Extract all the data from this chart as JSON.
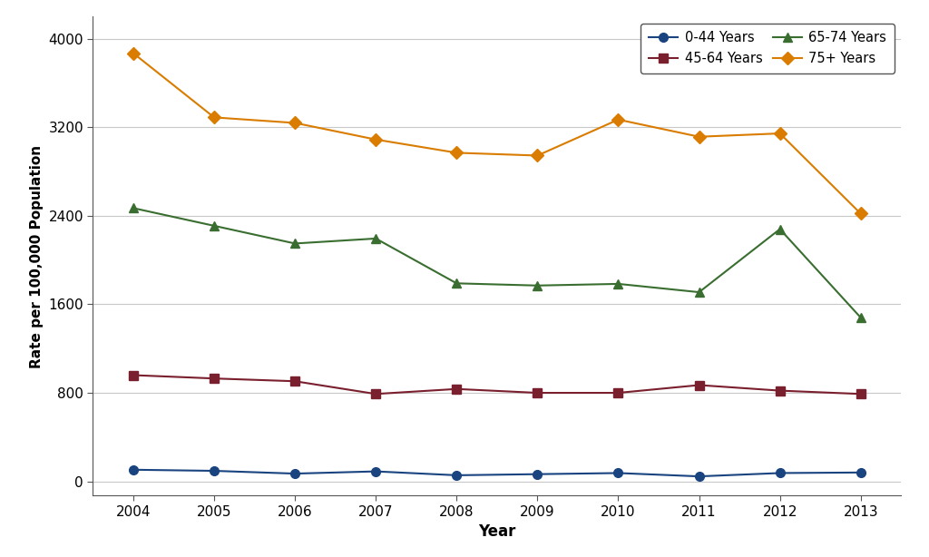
{
  "years": [
    2004,
    2005,
    2006,
    2007,
    2008,
    2009,
    2010,
    2011,
    2012,
    2013
  ],
  "series": {
    "0-44 Years": {
      "values": [
        105,
        95,
        70,
        90,
        55,
        65,
        75,
        45,
        75,
        80
      ],
      "color": "#1a4480",
      "marker": "o",
      "label": "0-44 Years"
    },
    "45-64 Years": {
      "values": [
        960,
        930,
        905,
        790,
        835,
        800,
        800,
        870,
        820,
        790
      ],
      "color": "#7a1f2e",
      "marker": "s",
      "label": "45-64 Years"
    },
    "65-74 Years": {
      "values": [
        2470,
        2310,
        2150,
        2195,
        1790,
        1770,
        1785,
        1710,
        2280,
        1480
      ],
      "color": "#3a6e30",
      "marker": "^",
      "label": "65-74 Years"
    },
    "75+ Years": {
      "values": [
        3870,
        3290,
        3240,
        3090,
        2970,
        2945,
        3270,
        3115,
        3145,
        2420
      ],
      "color": "#d97c00",
      "marker": "D",
      "label": "75+ Years"
    }
  },
  "xlabel": "Year",
  "ylabel": "Rate per 100,000 Population",
  "ylim": [
    -130,
    4200
  ],
  "yticks": [
    0,
    800,
    1600,
    2400,
    3200,
    4000
  ],
  "background_color": "#ffffff",
  "grid_color": "#c8c8c8",
  "linewidth": 1.5,
  "markersize": 7
}
